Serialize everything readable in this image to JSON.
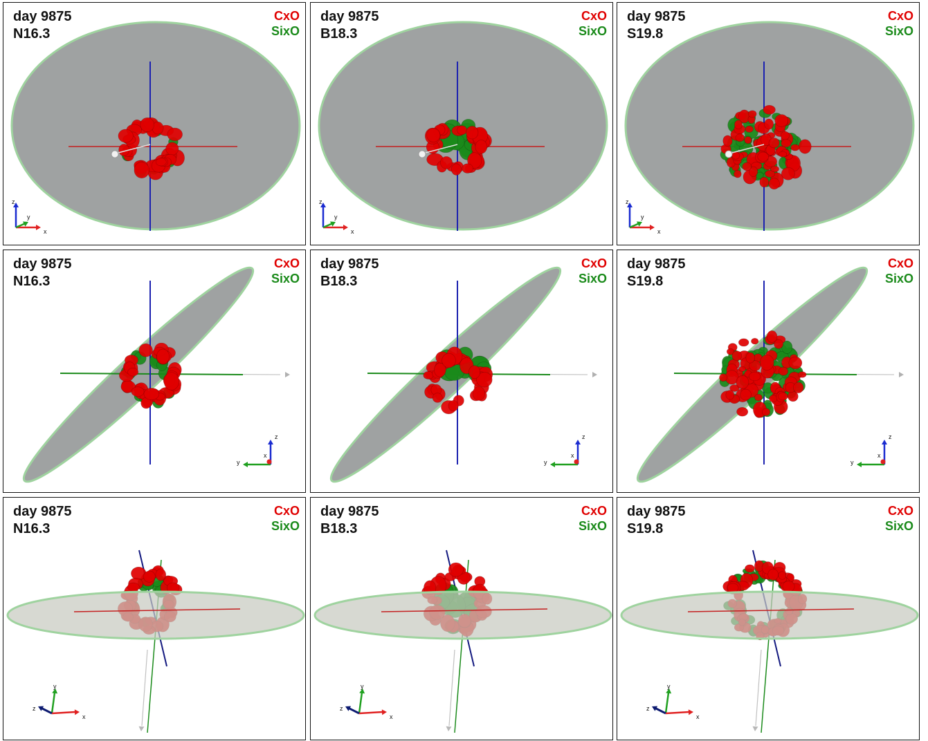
{
  "panels": [
    {
      "day_label": "day 9875",
      "model": "N16.3",
      "species": [
        "CxO",
        "SixO"
      ],
      "view": "top",
      "triad": [
        "z",
        "y",
        "x"
      ]
    },
    {
      "day_label": "day 9875",
      "model": "B18.3",
      "species": [
        "CxO",
        "SixO"
      ],
      "view": "top",
      "triad": [
        "z",
        "y",
        "x"
      ]
    },
    {
      "day_label": "day 9875",
      "model": "S19.8",
      "species": [
        "CxO",
        "SixO"
      ],
      "view": "top",
      "triad": [
        "z",
        "y",
        "x"
      ]
    },
    {
      "day_label": "day 9875",
      "model": "N16.3",
      "species": [
        "CxO",
        "SixO"
      ],
      "view": "side",
      "triad": [
        "z",
        "x",
        "y"
      ]
    },
    {
      "day_label": "day 9875",
      "model": "B18.3",
      "species": [
        "CxO",
        "SixO"
      ],
      "view": "side",
      "triad": [
        "z",
        "x",
        "y"
      ]
    },
    {
      "day_label": "day 9875",
      "model": "S19.8",
      "species": [
        "CxO",
        "SixO"
      ],
      "view": "side",
      "triad": [
        "z",
        "x",
        "y"
      ]
    },
    {
      "day_label": "day 9875",
      "model": "N16.3",
      "species": [
        "CxO",
        "SixO"
      ],
      "view": "edge",
      "triad": [
        "y",
        "z",
        "x"
      ]
    },
    {
      "day_label": "day 9875",
      "model": "B18.3",
      "species": [
        "CxO",
        "SixO"
      ],
      "view": "edge",
      "triad": [
        "y",
        "z",
        "x"
      ]
    },
    {
      "day_label": "day 9875",
      "model": "S19.8",
      "species": [
        "CxO",
        "SixO"
      ],
      "view": "edge",
      "triad": [
        "y",
        "z",
        "x"
      ]
    }
  ],
  "colors": {
    "species1": "#e00000",
    "species2": "#1a8a1a",
    "disk": "#9a9d9d",
    "disk_light": "#c8cbc0"
  }
}
